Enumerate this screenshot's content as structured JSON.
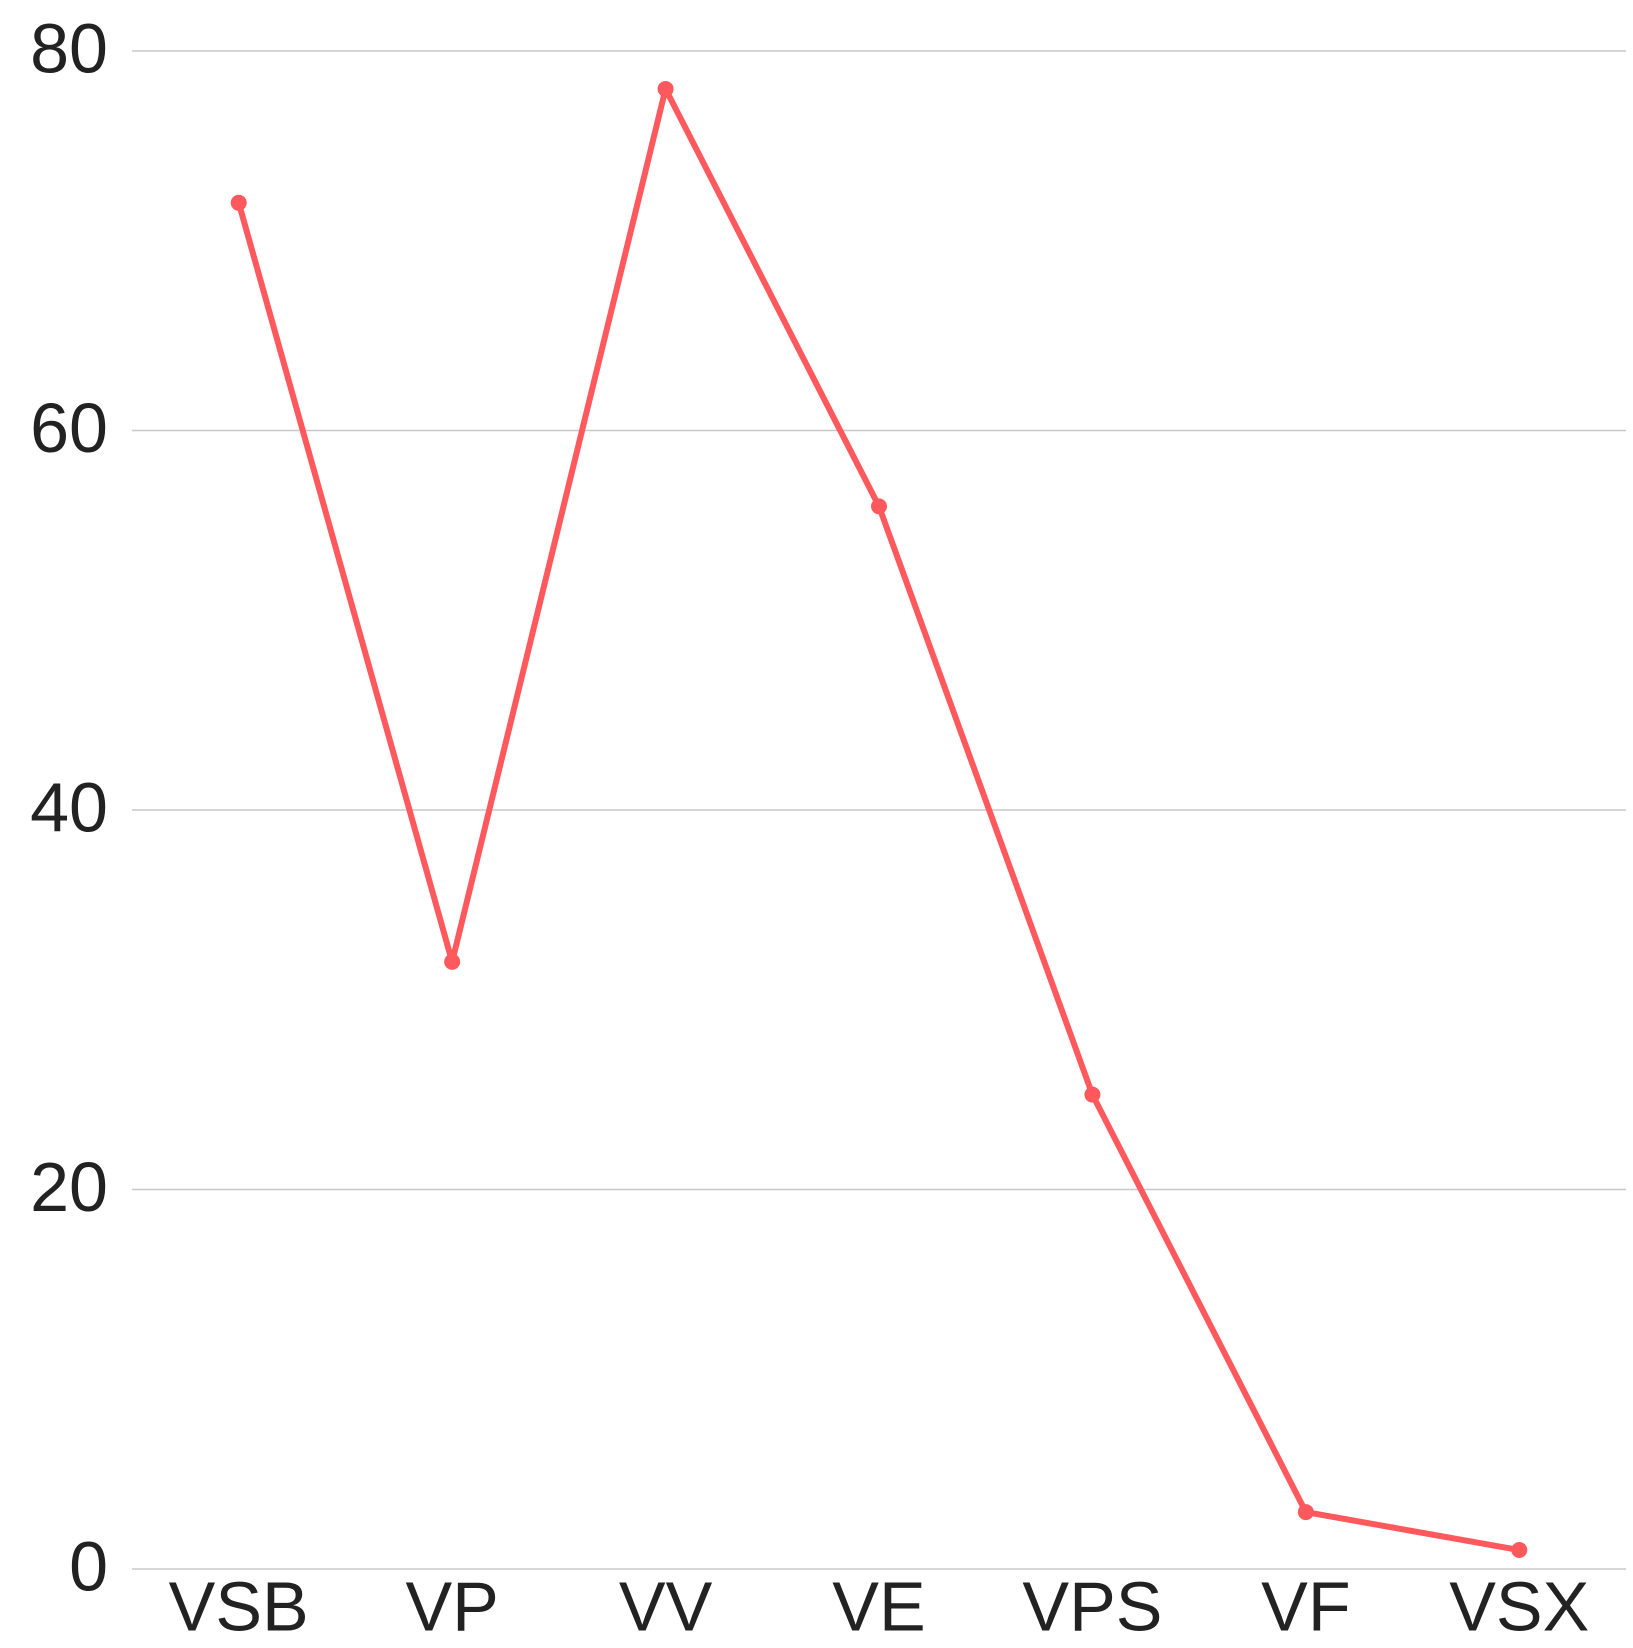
{
  "chart_data": {
    "type": "line",
    "categories": [
      "VSB",
      "VP",
      "VV",
      "VE",
      "VPS",
      "VF",
      "VSX"
    ],
    "values": [
      72,
      32,
      78,
      56,
      25,
      3,
      1
    ],
    "color": "#ff585d",
    "ylim": [
      0,
      80
    ],
    "yticks": [
      0,
      20,
      40,
      60,
      80
    ],
    "grid": true
  }
}
